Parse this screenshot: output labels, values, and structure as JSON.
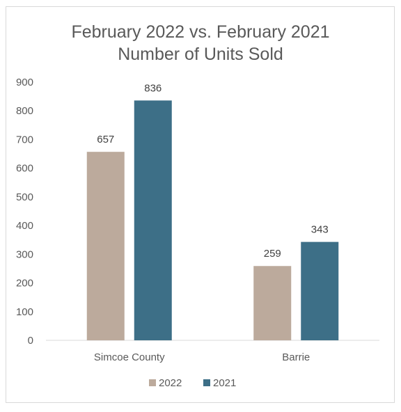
{
  "chart_data": {
    "type": "bar",
    "title": "February 2022 vs. February 2021",
    "subtitle": "Number of Units Sold",
    "categories": [
      "Simcoe County",
      "Barrie"
    ],
    "series": [
      {
        "name": "2022",
        "values": [
          657,
          259
        ],
        "color": "#bcaa9c"
      },
      {
        "name": "2021",
        "values": [
          836,
          343
        ],
        "color": "#3d6f87"
      }
    ],
    "ylim": [
      0,
      900
    ],
    "yticks": [
      0,
      100,
      200,
      300,
      400,
      500,
      600,
      700,
      800,
      900
    ],
    "xlabel": "",
    "ylabel": "",
    "grid": false,
    "data_labels": true,
    "legend_position": "bottom"
  }
}
